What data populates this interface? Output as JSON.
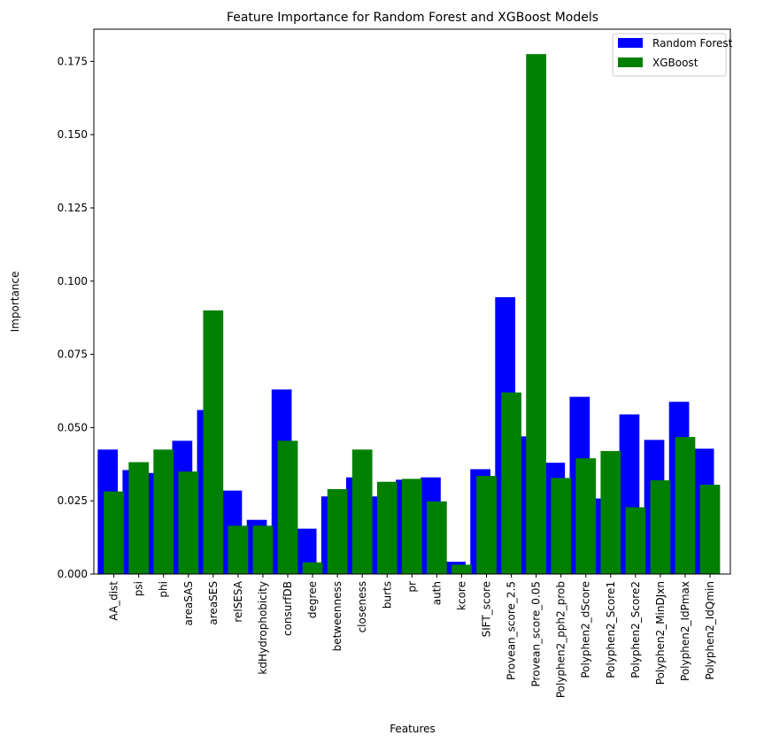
{
  "chart_data": {
    "type": "bar",
    "title": "Feature Importance for Random Forest and XGBoost Models",
    "xlabel": "Features",
    "ylabel": "Importance",
    "ylim": [
      0,
      0.186
    ],
    "yticks": [
      0.0,
      0.025,
      0.05,
      0.075,
      0.1,
      0.125,
      0.15,
      0.175
    ],
    "ytick_labels": [
      "0.000",
      "0.025",
      "0.050",
      "0.075",
      "0.100",
      "0.125",
      "0.150",
      "0.175"
    ],
    "categories": [
      "AA_dist",
      "psi",
      "phi",
      "areaSAS",
      "areaSES",
      "relSESA",
      "kdHydrophobicity",
      "consurfDB",
      "degree",
      "betweenness",
      "closeness",
      "burts",
      "pr",
      "auth",
      "kcore",
      "SIFT_score",
      "Provean_score_2.5",
      "Provean_score_0.05",
      "Polyphen2_pph2_prob",
      "Polyphen2_dScore",
      "Polyphen2_Score1",
      "Polyphen2_Score2",
      "Polyphen2_MinDJxn",
      "Polyphen2_IdPmax",
      "Polyphen2_IdQmin"
    ],
    "series": [
      {
        "name": "Random Forest",
        "color": "#0000ff",
        "values": [
          0.0425,
          0.0355,
          0.0345,
          0.0455,
          0.056,
          0.0285,
          0.0185,
          0.063,
          0.0155,
          0.0265,
          0.033,
          0.0265,
          0.0322,
          0.033,
          0.0042,
          0.0358,
          0.0945,
          0.047,
          0.038,
          0.0605,
          0.0258,
          0.0545,
          0.0458,
          0.0588,
          0.0428
        ]
      },
      {
        "name": "XGBoost",
        "color": "#008000",
        "values": [
          0.0282,
          0.0382,
          0.0425,
          0.035,
          0.09,
          0.0165,
          0.0165,
          0.0455,
          0.004,
          0.029,
          0.0425,
          0.0315,
          0.0325,
          0.0248,
          0.0032,
          0.0335,
          0.062,
          0.1775,
          0.0328,
          0.0395,
          0.042,
          0.0228,
          0.032,
          0.0468,
          0.0305
        ]
      }
    ],
    "legend_position": "top-right",
    "grid": false
  }
}
